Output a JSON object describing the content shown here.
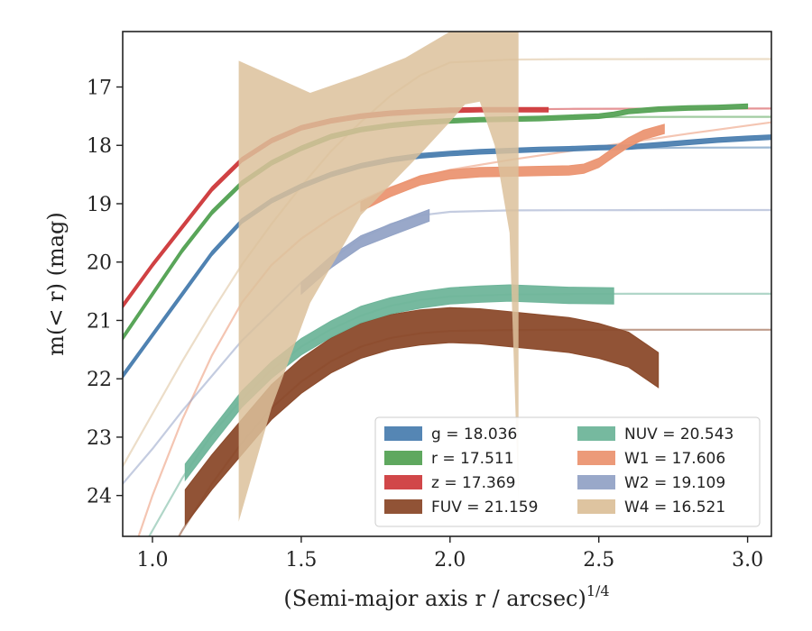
{
  "chart_data": {
    "type": "line",
    "xlabel": "(Semi-major axis r / arcsec)",
    "xlabel_exponent": "1/4",
    "ylabel": "m(< r) (mag)",
    "xlim": [
      0.9,
      3.08
    ],
    "ylim": [
      24.7,
      16.05
    ],
    "y_inverted": true,
    "grid": false,
    "legend_position": "lower-right",
    "legend_columns": 2,
    "x_ticks": [
      1.0,
      1.5,
      2.0,
      2.5,
      3.0
    ],
    "y_ticks": [
      17,
      18,
      19,
      20,
      21,
      22,
      23,
      24
    ],
    "series": [
      {
        "name": "g",
        "legend": "g = 18.036",
        "color": "#4c7fb0",
        "band_half_width": 0.04,
        "x": [
          0.9,
          1.0,
          1.1,
          1.2,
          1.3,
          1.4,
          1.5,
          1.6,
          1.7,
          1.8,
          1.9,
          2.0,
          2.1,
          2.2,
          2.3,
          2.4,
          2.5,
          2.6,
          2.7,
          2.8,
          2.9,
          3.0,
          3.08
        ],
        "y": [
          21.95,
          21.25,
          20.55,
          19.85,
          19.3,
          18.95,
          18.7,
          18.5,
          18.35,
          18.25,
          18.18,
          18.14,
          18.11,
          18.09,
          18.07,
          18.06,
          18.04,
          18.03,
          17.99,
          17.95,
          17.91,
          17.88,
          17.86
        ],
        "model_x": [
          0.9,
          1.0,
          1.1,
          1.2,
          1.3,
          1.4,
          1.5,
          1.6,
          1.7,
          1.8,
          1.9,
          2.0,
          2.2,
          2.4,
          2.6,
          2.8,
          3.08
        ],
        "model_y": [
          21.95,
          21.25,
          20.55,
          19.85,
          19.3,
          18.95,
          18.7,
          18.5,
          18.36,
          18.26,
          18.19,
          18.14,
          18.09,
          18.06,
          18.05,
          18.04,
          18.036
        ]
      },
      {
        "name": "r",
        "legend": "r = 17.511",
        "color": "#56a356",
        "band_half_width": 0.04,
        "x": [
          0.9,
          1.0,
          1.1,
          1.2,
          1.3,
          1.4,
          1.5,
          1.6,
          1.7,
          1.8,
          1.9,
          2.0,
          2.1,
          2.2,
          2.3,
          2.4,
          2.5,
          2.55,
          2.6,
          2.7,
          2.8,
          2.9,
          3.0
        ],
        "y": [
          21.3,
          20.55,
          19.8,
          19.15,
          18.65,
          18.3,
          18.05,
          17.85,
          17.73,
          17.66,
          17.61,
          17.58,
          17.56,
          17.55,
          17.54,
          17.52,
          17.5,
          17.47,
          17.42,
          17.38,
          17.36,
          17.35,
          17.33
        ],
        "model_x": [
          0.9,
          1.0,
          1.1,
          1.2,
          1.3,
          1.4,
          1.5,
          1.6,
          1.7,
          1.8,
          1.9,
          2.0,
          2.2,
          2.4,
          2.6,
          2.8,
          3.08
        ],
        "model_y": [
          21.3,
          20.55,
          19.8,
          19.15,
          18.65,
          18.3,
          18.05,
          17.86,
          17.74,
          17.66,
          17.6,
          17.57,
          17.54,
          17.52,
          17.515,
          17.512,
          17.511
        ]
      },
      {
        "name": "z",
        "legend": "z = 17.369",
        "color": "#cf3d3f",
        "band_half_width": 0.04,
        "x": [
          0.9,
          1.0,
          1.1,
          1.2,
          1.3,
          1.4,
          1.5,
          1.6,
          1.7,
          1.8,
          1.9,
          2.0,
          2.1,
          2.2,
          2.33
        ],
        "y": [
          20.75,
          20.05,
          19.4,
          18.75,
          18.25,
          17.92,
          17.7,
          17.58,
          17.5,
          17.45,
          17.42,
          17.4,
          17.39,
          17.39,
          17.39
        ],
        "model_x": [
          0.9,
          1.0,
          1.1,
          1.2,
          1.3,
          1.4,
          1.5,
          1.6,
          1.7,
          1.8,
          1.9,
          2.0,
          2.2,
          2.4,
          2.6,
          2.8,
          3.08
        ],
        "model_y": [
          20.75,
          20.05,
          19.4,
          18.75,
          18.25,
          17.92,
          17.7,
          17.58,
          17.5,
          17.45,
          17.42,
          17.4,
          17.385,
          17.375,
          17.372,
          17.37,
          17.369
        ]
      },
      {
        "name": "FUV",
        "legend": "FUV = 21.159",
        "color": "#8b4a2b",
        "band_half_width": 0.3,
        "x": [
          1.11,
          1.2,
          1.3,
          1.4,
          1.5,
          1.6,
          1.7,
          1.8,
          1.9,
          2.0,
          2.1,
          2.2,
          2.3,
          2.4,
          2.5,
          2.6,
          2.7
        ],
        "y": [
          24.2,
          23.6,
          23.0,
          22.4,
          21.95,
          21.6,
          21.35,
          21.2,
          21.12,
          21.08,
          21.1,
          21.15,
          21.2,
          21.25,
          21.35,
          21.5,
          21.85
        ],
        "model_x": [
          0.9,
          1.0,
          1.1,
          1.2,
          1.3,
          1.4,
          1.5,
          1.6,
          1.7,
          1.8,
          1.9,
          2.0,
          2.2,
          2.4,
          2.6,
          2.8,
          3.08
        ],
        "model_y": [
          26.5,
          25.5,
          24.6,
          23.8,
          23.1,
          22.5,
          22.05,
          21.7,
          21.45,
          21.3,
          21.22,
          21.18,
          21.165,
          21.16,
          21.159,
          21.159,
          21.159
        ]
      },
      {
        "name": "NUV",
        "legend": "NUV = 20.543",
        "color": "#6fb59a",
        "band_half_width": 0.14,
        "x": [
          1.11,
          1.2,
          1.3,
          1.4,
          1.5,
          1.6,
          1.7,
          1.8,
          1.9,
          2.0,
          2.1,
          2.2,
          2.3,
          2.4,
          2.55
        ],
        "y": [
          23.6,
          23.0,
          22.35,
          21.85,
          21.45,
          21.15,
          20.9,
          20.75,
          20.65,
          20.58,
          20.55,
          20.53,
          20.55,
          20.57,
          20.58
        ],
        "model_x": [
          0.9,
          1.0,
          1.1,
          1.2,
          1.3,
          1.4,
          1.5,
          1.6,
          1.7,
          1.8,
          1.9,
          2.0,
          2.2,
          2.4,
          2.6,
          2.8,
          3.08
        ],
        "model_y": [
          25.5,
          24.6,
          23.7,
          22.95,
          22.35,
          21.85,
          21.45,
          21.15,
          20.92,
          20.75,
          20.65,
          20.59,
          20.555,
          20.546,
          20.544,
          20.543,
          20.543
        ]
      },
      {
        "name": "W1",
        "legend": "W1 = 17.606",
        "color": "#eb9572",
        "band_half_width": 0.08,
        "x": [
          1.7,
          1.8,
          1.9,
          2.0,
          2.1,
          2.2,
          2.3,
          2.4,
          2.45,
          2.5,
          2.55,
          2.6,
          2.65,
          2.72
        ],
        "y": [
          19.05,
          18.8,
          18.6,
          18.5,
          18.46,
          18.45,
          18.44,
          18.43,
          18.4,
          18.3,
          18.12,
          17.95,
          17.82,
          17.72
        ],
        "model_x": [
          0.9,
          1.0,
          1.1,
          1.2,
          1.3,
          1.4,
          1.5,
          1.6,
          1.7,
          1.8,
          1.9,
          2.0,
          2.2,
          2.4,
          2.6,
          2.8,
          3.08
        ],
        "model_y": [
          25.5,
          24.0,
          22.7,
          21.6,
          20.7,
          20.05,
          19.6,
          19.25,
          18.95,
          18.72,
          18.55,
          18.42,
          18.25,
          18.1,
          17.95,
          17.8,
          17.606
        ]
      },
      {
        "name": "W2",
        "legend": "W2 = 19.109",
        "color": "#93a3c6",
        "band_half_width": 0.1,
        "x": [
          1.5,
          1.6,
          1.7,
          1.8,
          1.93
        ],
        "y": [
          20.45,
          20.0,
          19.65,
          19.45,
          19.2
        ],
        "model_x": [
          0.9,
          1.0,
          1.1,
          1.2,
          1.3,
          1.4,
          1.5,
          1.6,
          1.7,
          1.8,
          1.9,
          2.0,
          2.2,
          2.4,
          2.6,
          2.8,
          3.08
        ],
        "model_y": [
          23.8,
          23.2,
          22.55,
          21.95,
          21.35,
          20.85,
          20.35,
          19.95,
          19.6,
          19.35,
          19.2,
          19.14,
          19.115,
          19.111,
          19.11,
          19.109,
          19.109
        ]
      },
      {
        "name": "W4",
        "legend": "W4 = 16.521",
        "color": "#dcc19b",
        "fill_lower": {
          "x": [
            1.29,
            1.4,
            1.53,
            1.7,
            1.9,
            2.0,
            2.05,
            2.1,
            2.15,
            2.2,
            2.23
          ],
          "y": [
            24.45,
            22.5,
            20.7,
            19.2,
            18.15,
            17.6,
            17.3,
            17.25,
            18.0,
            19.5,
            24.1
          ]
        },
        "fill_upper": {
          "x": [
            1.29,
            1.53,
            1.7,
            1.85,
            1.95,
            2.0,
            2.1,
            2.23
          ],
          "y": [
            16.55,
            17.1,
            16.8,
            16.5,
            16.2,
            16.05,
            16.05,
            16.05
          ]
        },
        "model_x": [
          0.9,
          1.0,
          1.1,
          1.2,
          1.3,
          1.4,
          1.5,
          1.6,
          1.7,
          1.8,
          1.9,
          2.0,
          2.2,
          2.4,
          2.6,
          2.8,
          3.08
        ],
        "model_y": [
          23.5,
          22.6,
          21.7,
          20.85,
          20.05,
          19.35,
          18.7,
          18.1,
          17.6,
          17.15,
          16.8,
          16.58,
          16.53,
          16.523,
          16.522,
          16.521,
          16.521
        ]
      }
    ]
  }
}
